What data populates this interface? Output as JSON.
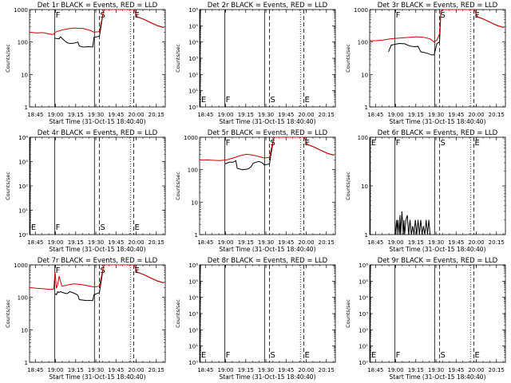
{
  "figure": {
    "start_time_label": "Start Time (31-Oct-15 18:40:40)",
    "x_tick_labels": [
      "18:45",
      "19:00",
      "19:15",
      "19:30",
      "19:45",
      "20:00",
      "20:15"
    ]
  },
  "chart_data": [
    {
      "type": "line",
      "detector": "1r",
      "title": "Det 1r BLACK = Events, RED = LLD",
      "xlabel": "Start Time (31-Oct-15 18:40:40)",
      "ylabel": "Counts/sec",
      "x_unit": "minutes since 18:40:40",
      "xlim": [
        0,
        101
      ],
      "ylim": [
        1,
        1000
      ],
      "yscale": "log",
      "y_tick_labels": [
        "1",
        "10",
        "100",
        "1000"
      ],
      "marker_lines": [
        {
          "x": 18.8,
          "style": "solid",
          "label": "F"
        },
        {
          "x": 48.3,
          "style": "solid",
          "label": ""
        },
        {
          "x": 52.0,
          "style": "dashed",
          "label": "S"
        },
        {
          "x": 75.0,
          "style": "dotted",
          "label": ""
        },
        {
          "x": 77.5,
          "style": "dashed",
          "label": "E"
        }
      ],
      "series": [
        {
          "name": "Events",
          "color": "#000000",
          "x": [
            19,
            22,
            23,
            26,
            28,
            30,
            33,
            36,
            37,
            40,
            44,
            47,
            48,
            52,
            55,
            56,
            60,
            65,
            70,
            75,
            78,
            80,
            85,
            90,
            95,
            100
          ],
          "y": [
            130,
            125,
            145,
            110,
            95,
            90,
            92,
            100,
            75,
            70,
            72,
            70,
            140,
            150,
            900,
            1000,
            1000,
            1000,
            1000,
            1000,
            1000,
            600,
            500,
            400,
            320,
            280
          ]
        },
        {
          "name": "LLD",
          "color": "#d00000",
          "x": [
            0,
            5,
            10,
            14,
            17,
            18,
            19,
            22,
            27,
            33,
            40,
            45,
            48,
            52,
            55,
            56,
            60,
            65,
            70,
            75,
            78,
            80,
            85,
            90,
            95,
            100
          ],
          "y": [
            200,
            190,
            195,
            180,
            170,
            175,
            200,
            220,
            250,
            270,
            260,
            230,
            200,
            210,
            900,
            1000,
            1000,
            1000,
            1000,
            1000,
            1000,
            600,
            500,
            400,
            320,
            280
          ]
        }
      ]
    },
    {
      "type": "line",
      "detector": "2r",
      "title": "Det 2r BLACK = Events, RED = LLD",
      "xlabel": "Start Time (31-Oct-15 18:40:40)",
      "ylabel": "Counts/sec",
      "x_unit": "minutes since 18:40:40",
      "xlim": [
        0,
        101
      ],
      "ylim": [
        1,
        1000000
      ],
      "yscale": "log",
      "y_tick_labels": [
        "10⁰",
        "10¹",
        "10²",
        "10³",
        "10⁴",
        "10⁵",
        "10⁶"
      ],
      "marker_lines": [
        {
          "x": 0.5,
          "style": "solid",
          "label": "E"
        },
        {
          "x": 18.8,
          "style": "solid",
          "label": "F"
        },
        {
          "x": 48.3,
          "style": "solid",
          "label": ""
        },
        {
          "x": 52.0,
          "style": "dashed",
          "label": "S"
        },
        {
          "x": 75.0,
          "style": "dotted",
          "label": ""
        },
        {
          "x": 77.5,
          "style": "dashed",
          "label": "E"
        }
      ],
      "series": []
    },
    {
      "type": "line",
      "detector": "3r",
      "title": "Det 3r BLACK = Events, RED = LLD",
      "xlabel": "Start Time (31-Oct-15 18:40:40)",
      "ylabel": "Counts/sec",
      "x_unit": "minutes since 18:40:40",
      "xlim": [
        0,
        101
      ],
      "ylim": [
        1,
        1000
      ],
      "yscale": "log",
      "y_tick_labels": [
        "1",
        "10",
        "100",
        "1000"
      ],
      "marker_lines": [
        {
          "x": 18.8,
          "style": "solid",
          "label": "F"
        },
        {
          "x": 48.3,
          "style": "solid",
          "label": ""
        },
        {
          "x": 52.0,
          "style": "dashed",
          "label": "S"
        },
        {
          "x": 75.0,
          "style": "dotted",
          "label": ""
        },
        {
          "x": 77.5,
          "style": "dashed",
          "label": "E"
        }
      ],
      "series": [
        {
          "name": "Events",
          "color": "#000000",
          "x": [
            14,
            16,
            19,
            22,
            26,
            30,
            33,
            36,
            38,
            43,
            46,
            48,
            50,
            52,
            53,
            55,
            60,
            65,
            70,
            75,
            78,
            80,
            85,
            90,
            95,
            100
          ],
          "y": [
            50,
            80,
            85,
            90,
            88,
            75,
            72,
            73,
            50,
            45,
            40,
            40,
            90,
            100,
            900,
            1000,
            1000,
            1000,
            1000,
            1000,
            1000,
            600,
            500,
            400,
            320,
            280
          ]
        },
        {
          "name": "LLD",
          "color": "#d00000",
          "x": [
            0,
            5,
            10,
            15,
            20,
            25,
            30,
            35,
            40,
            45,
            48,
            50,
            52,
            53,
            55,
            60,
            65,
            70,
            75,
            78,
            80,
            85,
            90,
            95,
            100
          ],
          "y": [
            110,
            110,
            115,
            125,
            130,
            135,
            140,
            145,
            140,
            125,
            100,
            115,
            180,
            900,
            1000,
            1000,
            1000,
            1000,
            1000,
            1000,
            600,
            500,
            400,
            320,
            280
          ]
        }
      ]
    },
    {
      "type": "line",
      "detector": "4r",
      "title": "Det 4r BLACK = Events, RED = LLD",
      "xlabel": "Start Time (31-Oct-15 18:40:40)",
      "ylabel": "Counts/sec",
      "x_unit": "minutes since 18:40:40",
      "xlim": [
        0,
        101
      ],
      "ylim": [
        1,
        10000
      ],
      "yscale": "log",
      "y_tick_labels": [
        "10⁰",
        "10¹",
        "10²",
        "10³",
        "10⁴"
      ],
      "marker_lines": [
        {
          "x": 0.5,
          "style": "solid",
          "label": "E"
        },
        {
          "x": 18.8,
          "style": "solid",
          "label": "F"
        },
        {
          "x": 48.3,
          "style": "solid",
          "label": ""
        },
        {
          "x": 52.0,
          "style": "dashed",
          "label": "S"
        },
        {
          "x": 75.0,
          "style": "dotted",
          "label": ""
        },
        {
          "x": 77.5,
          "style": "dashed",
          "label": "E"
        }
      ],
      "series": []
    },
    {
      "type": "line",
      "detector": "5r",
      "title": "Det 5r BLACK = Events, RED = LLD",
      "xlabel": "Start Time (31-Oct-15 18:40:40)",
      "ylabel": "Counts/sec",
      "x_unit": "minutes since 18:40:40",
      "xlim": [
        0,
        101
      ],
      "ylim": [
        1,
        1000
      ],
      "yscale": "log",
      "y_tick_labels": [
        "1",
        "10",
        "100",
        "1000"
      ],
      "marker_lines": [
        {
          "x": 18.8,
          "style": "solid",
          "label": "F"
        },
        {
          "x": 48.3,
          "style": "solid",
          "label": ""
        },
        {
          "x": 52.0,
          "style": "dashed",
          "label": "S"
        },
        {
          "x": 75.0,
          "style": "dotted",
          "label": ""
        },
        {
          "x": 77.5,
          "style": "dashed",
          "label": "E"
        }
      ],
      "series": [
        {
          "name": "Events",
          "color": "#000000",
          "x": [
            19,
            22,
            25,
            27,
            28,
            32,
            36,
            38,
            40,
            44,
            47,
            48,
            52,
            55,
            56,
            60,
            65,
            70,
            75,
            78,
            80,
            85,
            90,
            95,
            100
          ],
          "y": [
            150,
            170,
            170,
            190,
            110,
            100,
            105,
            120,
            160,
            180,
            160,
            140,
            150,
            900,
            1000,
            1000,
            1000,
            1000,
            1000,
            1000,
            600,
            500,
            400,
            320,
            280
          ]
        },
        {
          "name": "LLD",
          "color": "#d00000",
          "x": [
            0,
            5,
            10,
            15,
            20,
            25,
            30,
            35,
            40,
            45,
            48,
            52,
            55,
            56,
            60,
            65,
            70,
            75,
            78,
            80,
            85,
            90,
            95,
            100
          ],
          "y": [
            200,
            200,
            195,
            190,
            200,
            230,
            270,
            300,
            280,
            250,
            230,
            240,
            900,
            1000,
            1000,
            1000,
            1000,
            1000,
            1000,
            600,
            500,
            400,
            320,
            280
          ]
        }
      ]
    },
    {
      "type": "line",
      "detector": "6r",
      "title": "Det 6r BLACK = Events, RED = LLD",
      "xlabel": "Start Time (31-Oct-15 18:40:40)",
      "ylabel": "Counts/sec",
      "x_unit": "minutes since 18:40:40",
      "xlim": [
        0,
        101
      ],
      "ylim": [
        1,
        100
      ],
      "yscale": "log",
      "y_tick_labels": [
        "1",
        "10",
        "100"
      ],
      "marker_lines": [
        {
          "x": 0.5,
          "style": "solid",
          "label": "E"
        },
        {
          "x": 18.8,
          "style": "solid",
          "label": "F"
        },
        {
          "x": 48.3,
          "style": "solid",
          "label": ""
        },
        {
          "x": 52.0,
          "style": "dashed",
          "label": "S"
        },
        {
          "x": 75.0,
          "style": "dotted",
          "label": ""
        },
        {
          "x": 77.5,
          "style": "dashed",
          "label": "E"
        }
      ],
      "series": [
        {
          "name": "Events",
          "color": "#000000",
          "x": [
            19,
            20,
            20.5,
            21,
            22,
            22.5,
            23,
            24,
            25,
            25.5,
            26,
            27,
            28,
            29,
            30,
            31,
            32,
            33,
            34,
            35,
            36,
            37,
            38,
            39,
            40,
            41,
            42,
            43,
            44,
            45,
            46
          ],
          "y": [
            1,
            2,
            1,
            2,
            1,
            2.5,
            1,
            3,
            1,
            2,
            1,
            2,
            2.5,
            1,
            2,
            1,
            1.5,
            1,
            2,
            1,
            2,
            1,
            2,
            1,
            1.5,
            1,
            2,
            1,
            2,
            1,
            1
          ]
        },
        {
          "name": "LLD",
          "color": "#d00000",
          "x": [],
          "y": []
        }
      ]
    },
    {
      "type": "line",
      "detector": "7r",
      "title": "Det 7r BLACK = Events, RED = LLD",
      "xlabel": "Start Time (31-Oct-15 18:40:40)",
      "ylabel": "Counts/sec",
      "x_unit": "minutes since 18:40:40",
      "xlim": [
        0,
        101
      ],
      "ylim": [
        1,
        1000
      ],
      "yscale": "log",
      "y_tick_labels": [
        "1",
        "10",
        "100",
        "1000"
      ],
      "marker_lines": [
        {
          "x": 18.8,
          "style": "solid",
          "label": "F"
        },
        {
          "x": 48.3,
          "style": "solid",
          "label": ""
        },
        {
          "x": 52.0,
          "style": "dashed",
          "label": "S"
        },
        {
          "x": 75.0,
          "style": "dotted",
          "label": ""
        },
        {
          "x": 77.5,
          "style": "dashed",
          "label": "E"
        }
      ],
      "series": [
        {
          "name": "Events",
          "color": "#000000",
          "x": [
            19,
            20,
            21,
            22,
            23,
            26,
            28,
            30,
            34,
            36,
            37,
            42,
            47,
            48,
            52,
            55,
            56,
            60,
            65,
            70,
            75,
            78,
            80,
            85,
            90,
            95,
            100
          ],
          "y": [
            130,
            120,
            150,
            140,
            150,
            135,
            130,
            150,
            130,
            115,
            85,
            80,
            80,
            120,
            140,
            900,
            1000,
            1000,
            1000,
            1000,
            1000,
            1000,
            600,
            500,
            400,
            320,
            280
          ]
        },
        {
          "name": "LLD",
          "color": "#d00000",
          "x": [
            0,
            5,
            10,
            15,
            18,
            19,
            20,
            21,
            22,
            24,
            28,
            33,
            38,
            43,
            48,
            52,
            55,
            56,
            60,
            65,
            70,
            75,
            78,
            80,
            85,
            90,
            95,
            100
          ],
          "y": [
            200,
            190,
            185,
            175,
            180,
            600,
            190,
            250,
            450,
            220,
            240,
            260,
            250,
            230,
            210,
            220,
            900,
            1000,
            1000,
            1000,
            1000,
            1000,
            1000,
            600,
            500,
            400,
            320,
            280
          ]
        }
      ]
    },
    {
      "type": "line",
      "detector": "8r",
      "title": "Det 8r BLACK = Events, RED = LLD",
      "xlabel": "Start Time (31-Oct-15 18:40:40)",
      "ylabel": "Counts/sec",
      "x_unit": "minutes since 18:40:40",
      "xlim": [
        0,
        101
      ],
      "ylim": [
        1,
        1000000
      ],
      "yscale": "log",
      "y_tick_labels": [
        "10⁰",
        "10¹",
        "10²",
        "10³",
        "10⁴",
        "10⁵",
        "10⁶"
      ],
      "marker_lines": [
        {
          "x": 0.5,
          "style": "solid",
          "label": "E"
        },
        {
          "x": 18.8,
          "style": "solid",
          "label": "F"
        },
        {
          "x": 48.3,
          "style": "solid",
          "label": ""
        },
        {
          "x": 52.0,
          "style": "dashed",
          "label": "S"
        },
        {
          "x": 75.0,
          "style": "dotted",
          "label": ""
        },
        {
          "x": 77.5,
          "style": "dashed",
          "label": "E"
        }
      ],
      "series": []
    },
    {
      "type": "line",
      "detector": "9r",
      "title": "Det 9r BLACK = Events, RED = LLD",
      "xlabel": "Start Time (31-Oct-15 18:40:40)",
      "ylabel": "Counts/sec",
      "x_unit": "minutes since 18:40:40",
      "xlim": [
        0,
        101
      ],
      "ylim": [
        1,
        1000000
      ],
      "yscale": "log",
      "y_tick_labels": [
        "10⁰",
        "10¹",
        "10²",
        "10³",
        "10⁴",
        "10⁵",
        "10⁶"
      ],
      "marker_lines": [
        {
          "x": 0.5,
          "style": "solid",
          "label": "E"
        },
        {
          "x": 18.8,
          "style": "solid",
          "label": "F"
        },
        {
          "x": 48.3,
          "style": "solid",
          "label": ""
        },
        {
          "x": 52.0,
          "style": "dashed",
          "label": "S"
        },
        {
          "x": 75.0,
          "style": "dotted",
          "label": ""
        },
        {
          "x": 77.5,
          "style": "dashed",
          "label": "E"
        }
      ],
      "series": []
    }
  ]
}
